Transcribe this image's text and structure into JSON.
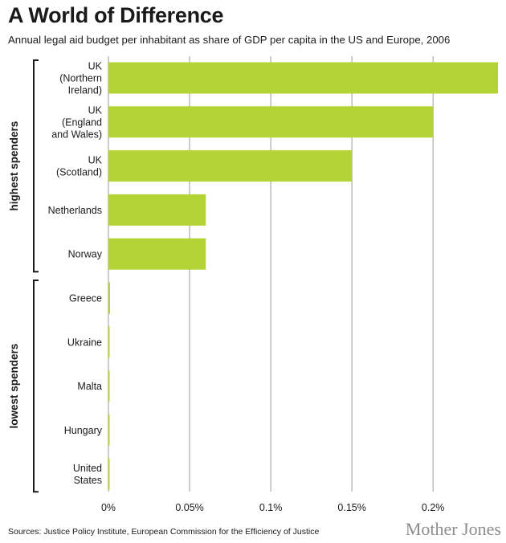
{
  "header": {
    "title": "A World of Difference",
    "subtitle": "Annual legal aid budget per inhabitant as share of GDP per capita in the US and Europe, 2006"
  },
  "footer": {
    "source": "Sources: Justice Policy Institute, European Commission for the Efficiency of Justice",
    "brand": "Mother Jones"
  },
  "chart_data": {
    "type": "bar",
    "orientation": "horizontal",
    "title": "A World of Difference",
    "subtitle": "Annual legal aid budget per inhabitant as share of GDP per capita in the US and Europe, 2006",
    "xlabel": "",
    "ylabel": "",
    "xlim": [
      0,
      0.24
    ],
    "x_ticks": [
      0,
      0.05,
      0.1,
      0.15,
      0.2
    ],
    "x_tick_labels": [
      "0%",
      "0.05%",
      "0.1%",
      "0.15%",
      "0.2%"
    ],
    "grid": "vertical",
    "bar_color": "#b4d334",
    "groups": [
      {
        "label": "highest spenders",
        "start": 0,
        "end": 4
      },
      {
        "label": "lowest spenders",
        "start": 5,
        "end": 9
      }
    ],
    "categories": [
      [
        "UK",
        "(Northern",
        "Ireland)"
      ],
      [
        "UK",
        "(England",
        "and Wales)"
      ],
      [
        "UK",
        "(Scotland)"
      ],
      [
        "Netherlands"
      ],
      [
        "Norway"
      ],
      [
        "Greece"
      ],
      [
        "Ukraine"
      ],
      [
        "Malta"
      ],
      [
        "Hungary"
      ],
      [
        "United",
        "States"
      ]
    ],
    "values": [
      0.24,
      0.2,
      0.15,
      0.06,
      0.06,
      0.001,
      0.0005,
      0.0004,
      0.0003,
      0.0002
    ]
  }
}
